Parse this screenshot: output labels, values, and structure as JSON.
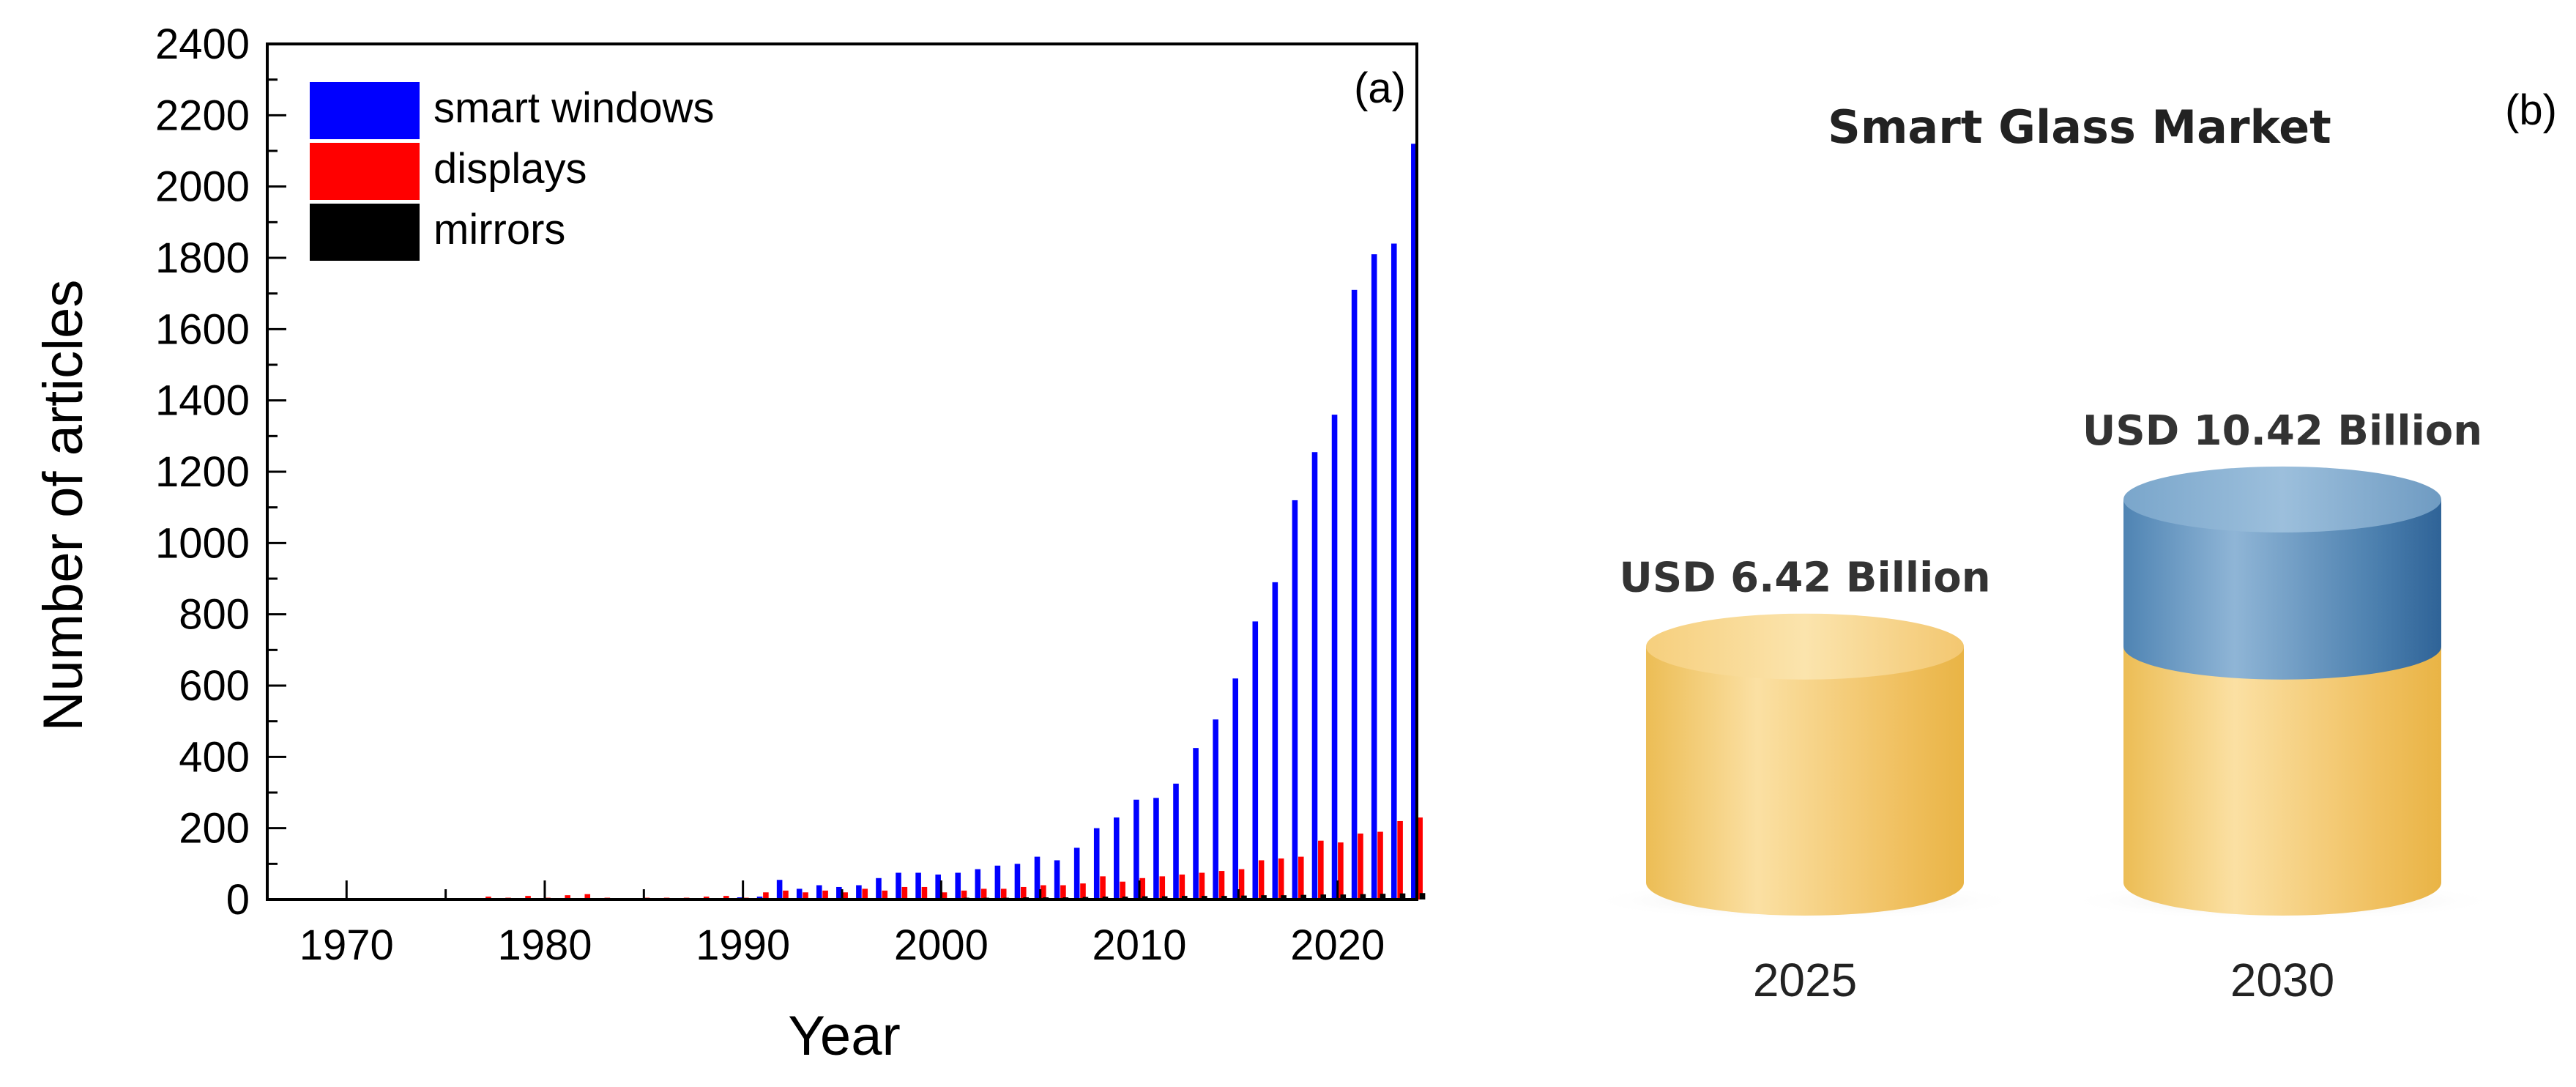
{
  "chart_data": [
    {
      "type": "bar",
      "panel_label": "(a)",
      "xlabel": "Year",
      "ylabel": "Number of articles",
      "xlim": [
        1966,
        2024
      ],
      "ylim": [
        0,
        2400
      ],
      "x_ticks": [
        1970,
        1980,
        1990,
        2000,
        2010,
        2020
      ],
      "y_ticks": [
        0,
        200,
        400,
        600,
        800,
        1000,
        1200,
        1400,
        1600,
        1800,
        2000,
        2200,
        2400
      ],
      "legend_position": "top-left",
      "grid": false,
      "x": [
        1970,
        1971,
        1972,
        1973,
        1974,
        1975,
        1976,
        1977,
        1978,
        1979,
        1980,
        1981,
        1982,
        1983,
        1984,
        1985,
        1986,
        1987,
        1988,
        1989,
        1990,
        1991,
        1992,
        1993,
        1994,
        1995,
        1996,
        1997,
        1998,
        1999,
        2000,
        2001,
        2002,
        2003,
        2004,
        2005,
        2006,
        2007,
        2008,
        2009,
        2010,
        2011,
        2012,
        2013,
        2014,
        2015,
        2016,
        2017,
        2018,
        2019,
        2020,
        2021,
        2022,
        2023,
        2024
      ],
      "series": [
        {
          "name": " smart windows",
          "color": "#0000ff",
          "values": [
            0,
            0,
            0,
            0,
            0,
            0,
            0,
            0,
            0,
            0,
            0,
            0,
            0,
            0,
            0,
            0,
            0,
            0,
            0,
            2,
            6,
            8,
            55,
            30,
            40,
            35,
            40,
            60,
            75,
            75,
            70,
            75,
            85,
            95,
            100,
            120,
            110,
            145,
            200,
            230,
            280,
            285,
            325,
            425,
            505,
            620,
            780,
            890,
            1120,
            1255,
            1360,
            1710,
            1810,
            1840,
            2120
          ]
        },
        {
          "name": "displays",
          "color": "#ff0000",
          "values": [
            0,
            0,
            0,
            0,
            0,
            0,
            0,
            8,
            5,
            10,
            5,
            12,
            15,
            5,
            3,
            5,
            5,
            5,
            8,
            10,
            5,
            20,
            25,
            20,
            25,
            20,
            30,
            25,
            35,
            35,
            20,
            25,
            30,
            30,
            35,
            40,
            40,
            45,
            65,
            50,
            60,
            65,
            70,
            75,
            80,
            85,
            110,
            115,
            120,
            165,
            160,
            185,
            190,
            220,
            230
          ]
        },
        {
          "name": "mirrors",
          "color": "#000000",
          "values": [
            0,
            0,
            0,
            0,
            0,
            0,
            0,
            0,
            0,
            0,
            0,
            0,
            0,
            0,
            0,
            0,
            0,
            0,
            0,
            0,
            2,
            3,
            4,
            3,
            3,
            3,
            3,
            4,
            4,
            4,
            4,
            5,
            5,
            5,
            6,
            6,
            6,
            7,
            8,
            8,
            9,
            9,
            10,
            10,
            10,
            11,
            12,
            12,
            13,
            14,
            14,
            15,
            16,
            17,
            18
          ]
        }
      ]
    },
    {
      "type": "bar",
      "panel_label": "(b)",
      "title": "Smart Glass Market",
      "categories": [
        "2025",
        "2030"
      ],
      "values": [
        6.42,
        10.42
      ],
      "value_labels": [
        "USD 6.42 Billion",
        "USD 10.42 Billion"
      ],
      "colors": {
        "base": "#f2c463",
        "growth": "#5f93bf"
      }
    }
  ]
}
